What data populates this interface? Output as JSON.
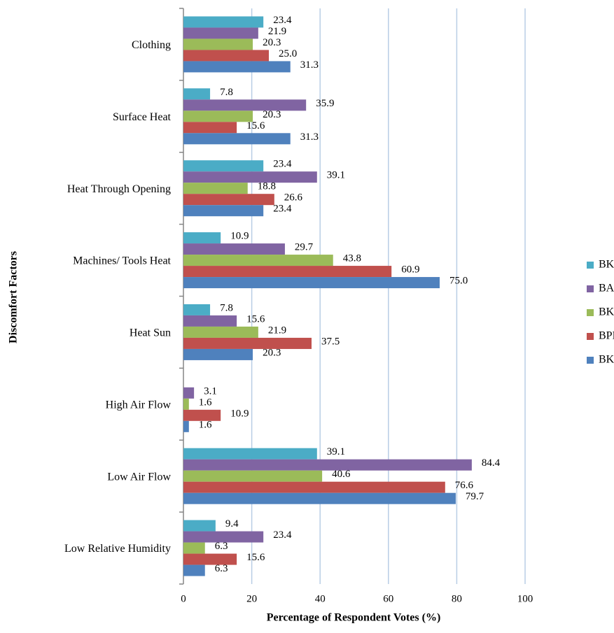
{
  "chart_data": {
    "type": "hbar",
    "xlabel": "Percentage of Respondent Votes (%)",
    "ylabel": "Discomfort Factors",
    "categories": [
      "Clothing",
      "Surface Heat",
      "Heat Through Opening",
      "Machines/ Tools Heat",
      "Heat Sun",
      "High Air Flow",
      "Low Air Flow",
      "Low Relative Humidity"
    ],
    "series": [
      {
        "name": "BKP",
        "color": "#4bacc6",
        "values": [
          23.4,
          7.8,
          23.4,
          10.9,
          7.8,
          null,
          39.1,
          9.4
        ],
        "value_labels": [
          "23.4",
          "7.8",
          "23.4",
          "10.9",
          "7.8",
          null,
          "39.1",
          "9.4"
        ]
      },
      {
        "name": "BALP",
        "color": "#8064a2",
        "values": [
          21.9,
          35.9,
          39.1,
          29.7,
          15.6,
          3.1,
          84.4,
          23.4
        ],
        "value_labels": [
          "21.9",
          "35.9",
          "39.1",
          "29.7",
          "15.6",
          "3.1",
          "84.4",
          "23.4"
        ]
      },
      {
        "name": "BKLP",
        "color": "#9bbb59",
        "values": [
          20.3,
          20.3,
          18.8,
          43.8,
          21.9,
          1.6,
          40.6,
          6.3
        ],
        "value_labels": [
          "20.3",
          "20.3",
          "18.8",
          "43.8",
          "21.9",
          "1.6",
          "40.6",
          "6.3"
        ]
      },
      {
        "name": "BPBN",
        "color": "#c0504d",
        "values": [
          25,
          15.6,
          26.6,
          60.9,
          37.5,
          10.9,
          76.6,
          15.6
        ],
        "value_labels": [
          "25.0",
          "15.6",
          "26.6",
          "60.9",
          "37.5",
          "10.9",
          "76.6",
          "15.6"
        ]
      },
      {
        "name": "BKBN",
        "color": "#4f81bd",
        "values": [
          31.3,
          31.3,
          23.4,
          75,
          20.3,
          1.6,
          79.7,
          6.3
        ],
        "value_labels": [
          "31.3",
          "31.3",
          "23.4",
          "75.0",
          "20.3",
          "1.6",
          "79.7",
          "6.3"
        ]
      }
    ],
    "xlim": [
      0,
      100
    ],
    "xticks": [
      0,
      20,
      40,
      60,
      80,
      100
    ],
    "grid": true,
    "legend": "right"
  }
}
